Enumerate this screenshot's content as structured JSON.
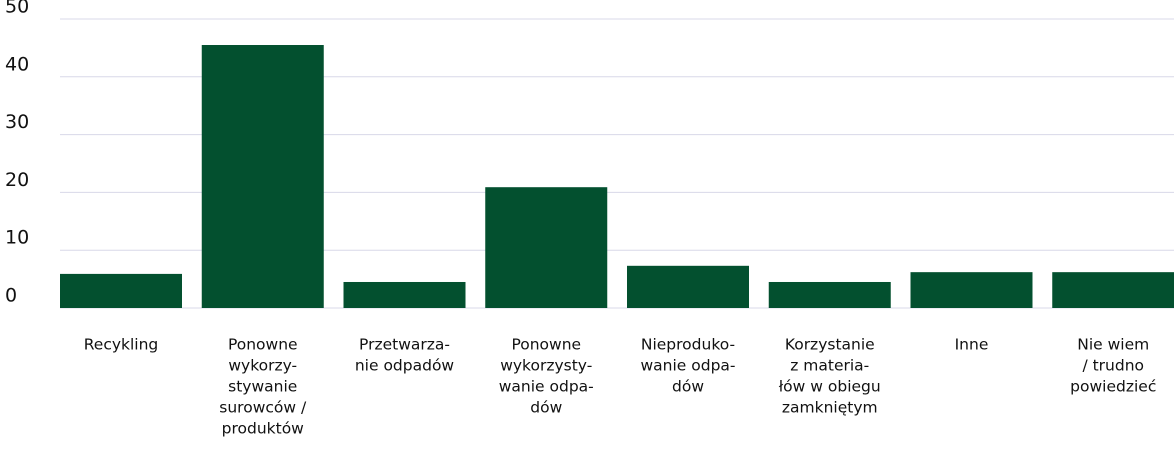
{
  "chart_data": {
    "type": "bar",
    "categories": [
      [
        "Recykling"
      ],
      [
        "Ponowne",
        "wykorzy-",
        "stywanie",
        "surowców /",
        "produktów"
      ],
      [
        "Przetwarza-",
        "nie odpadów"
      ],
      [
        "Ponowne",
        "wykorzysty-",
        "wanie odpa-",
        "dów"
      ],
      [
        "Nieproduko-",
        "wanie odpa-",
        "dów"
      ],
      [
        "Korzystanie",
        "z materia-",
        "łów w obiegu",
        "zamkniętym"
      ],
      [
        "Inne"
      ],
      [
        "Nie wiem",
        "/ trudno",
        "powiedzieć"
      ]
    ],
    "values": [
      5.9,
      45.5,
      4.5,
      20.9,
      7.3,
      4.5,
      6.2,
      6.2
    ],
    "color": "#03502f",
    "ylim": [
      0,
      50
    ],
    "yticks": [
      0,
      10,
      20,
      30,
      40,
      50
    ],
    "grid": true
  }
}
